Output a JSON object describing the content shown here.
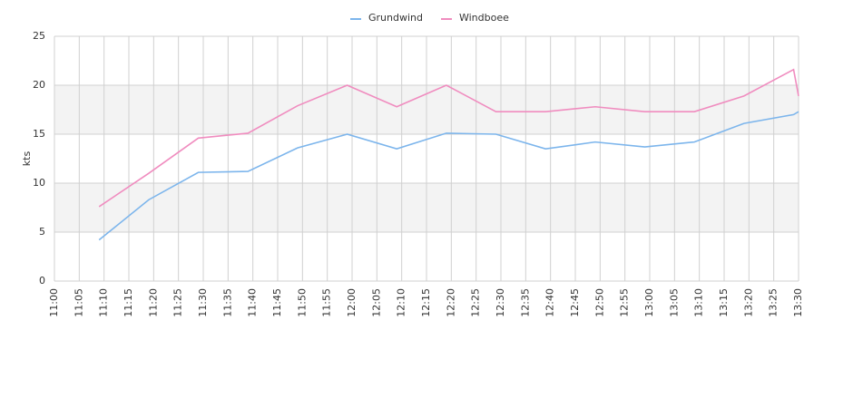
{
  "chart_data": {
    "type": "line",
    "x": [
      "11:09",
      "11:19",
      "11:29",
      "11:39",
      "11:49",
      "11:59",
      "12:09",
      "12:19",
      "12:29",
      "12:39",
      "12:49",
      "12:59",
      "13:09",
      "13:19",
      "13:29",
      "13:30"
    ],
    "series": [
      {
        "name": "Grundwind",
        "color": "#7cb5ec",
        "values": [
          4.2,
          8.3,
          11.1,
          11.2,
          13.6,
          15.0,
          13.5,
          15.1,
          15.0,
          13.5,
          14.2,
          13.7,
          14.2,
          16.1,
          17.0,
          17.3
        ]
      },
      {
        "name": "Windboee",
        "color": "#f08cbf",
        "values": [
          7.6,
          11.0,
          14.6,
          15.1,
          17.9,
          20.0,
          17.8,
          20.0,
          17.3,
          17.3,
          17.8,
          17.3,
          17.3,
          18.9,
          21.6,
          18.9
        ]
      }
    ],
    "ylabel": "kts",
    "ylim": [
      0,
      25
    ],
    "yticks": [
      0,
      5,
      10,
      15,
      20,
      25
    ],
    "xlim": [
      "11:00",
      "13:30"
    ],
    "xticks": [
      "11:00",
      "11:05",
      "11:10",
      "11:15",
      "11:20",
      "11:25",
      "11:30",
      "11:35",
      "11:40",
      "11:45",
      "11:50",
      "11:55",
      "12:00",
      "12:05",
      "12:10",
      "12:15",
      "12:20",
      "12:25",
      "12:30",
      "12:35",
      "12:40",
      "12:45",
      "12:50",
      "12:55",
      "13:00",
      "13:05",
      "13:10",
      "13:15",
      "13:20",
      "13:25",
      "13:30"
    ],
    "plot_bands": [
      {
        "from": 5,
        "to": 10,
        "color": "#f3f3f3"
      },
      {
        "from": 15,
        "to": 20,
        "color": "#f3f3f3"
      }
    ],
    "grid": true,
    "legend": "top"
  }
}
